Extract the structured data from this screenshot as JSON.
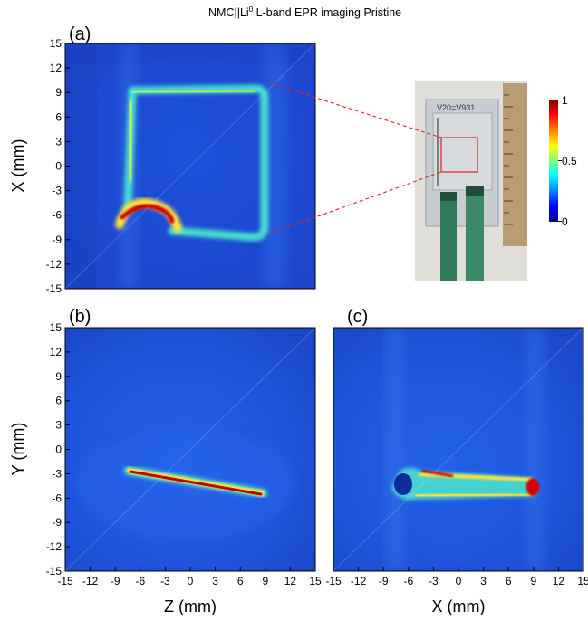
{
  "title": {
    "main": "NMC||Li",
    "superscript": "0",
    "rest": " L-band  EPR imaging  Pristine"
  },
  "chart_data": [
    {
      "panel": "(a)",
      "type": "heatmap",
      "description_key": "EPR image top view",
      "xlabel": "",
      "ylabel": "X (mm)",
      "xlim": [
        -15,
        15
      ],
      "ylim": [
        -15,
        15
      ],
      "yticks": [
        15,
        12,
        9,
        6,
        3,
        0,
        -3,
        -6,
        -9,
        -12,
        -15
      ],
      "xticks": [],
      "colormap": "jet",
      "clim": [
        0,
        1
      ]
    },
    {
      "panel": "(b)",
      "type": "heatmap",
      "xlabel": "Z (mm)",
      "ylabel": "Y (mm)",
      "xlim": [
        -15,
        15
      ],
      "ylim": [
        -15,
        15
      ],
      "xticks": [
        -15,
        -12,
        -9,
        -6,
        -3,
        0,
        3,
        6,
        9,
        12,
        15
      ],
      "yticks": [
        15,
        12,
        9,
        6,
        3,
        0,
        -3,
        -6,
        -9,
        -12,
        -15
      ],
      "colormap": "jet",
      "clim": [
        0,
        1
      ]
    },
    {
      "panel": "(c)",
      "type": "heatmap",
      "xlabel": "X (mm)",
      "ylabel": "",
      "xlim": [
        -15,
        15
      ],
      "ylim": [
        -15,
        15
      ],
      "xticks": [
        -15,
        -12,
        -9,
        -6,
        -3,
        0,
        3,
        6,
        9,
        12,
        15
      ],
      "yticks": [],
      "colormap": "jet",
      "clim": [
        0,
        1
      ]
    }
  ],
  "colorbar": {
    "ticks": [
      "1",
      "0.5",
      "0"
    ],
    "colors": [
      "#800000",
      "#ff0000",
      "#ffff00",
      "#00ffff",
      "#0000ff",
      "#00008f"
    ]
  },
  "photo": {
    "handwriting": "V20=V931"
  },
  "colors": {
    "background_blue": "#1f4fd8",
    "signal_cyan": "#49e0d0",
    "signal_yellow": "#ffe23a",
    "signal_red": "#d40000",
    "callout_red": "#e02020"
  }
}
